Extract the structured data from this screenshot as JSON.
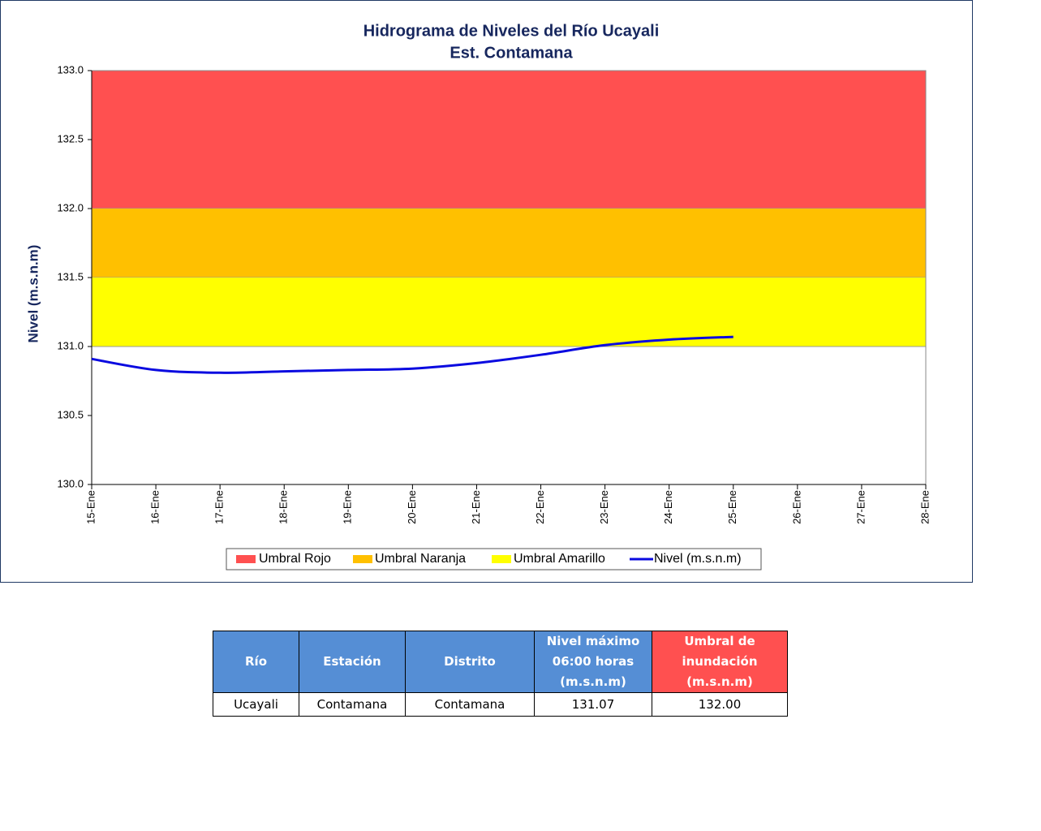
{
  "chart_data": {
    "type": "line",
    "title": "Hidrograma de Niveles del Río Ucayali",
    "subtitle": "Est. Contamana",
    "y_label": "Nivel (m.s.n.m)",
    "categories": [
      "15-Ene",
      "16-Ene",
      "17-Ene",
      "18-Ene",
      "19-Ene",
      "20-Ene",
      "21-Ene",
      "22-Ene",
      "23-Ene",
      "24-Ene",
      "25-Ene",
      "26-Ene",
      "27-Ene",
      "28-Ene"
    ],
    "bands": [
      {
        "name": "Umbral Rojo",
        "color": "#ff5050",
        "from": 132,
        "to": 133
      },
      {
        "name": "Umbral Naranja",
        "color": "#ffc000",
        "from": 131.5,
        "to": 132
      },
      {
        "name": "Umbral Amarillo",
        "color": "#ffff00",
        "from": 131,
        "to": 131.5
      }
    ],
    "series": [
      {
        "name": "Nivel (m.s.n.m)",
        "color": "#0a0ae0",
        "values": [
          130.91,
          130.83,
          130.81,
          130.82,
          130.83,
          130.84,
          130.88,
          130.94,
          131.01,
          131.05,
          131.07,
          null,
          null,
          null
        ]
      }
    ],
    "ylim": [
      130,
      133
    ],
    "yticks": [
      {
        "value": 130,
        "label": "130.0"
      },
      {
        "value": 130.5,
        "label": "130.5"
      },
      {
        "value": 131,
        "label": "131.0"
      },
      {
        "value": 131.5,
        "label": "131.5"
      },
      {
        "value": 132,
        "label": "132.0"
      },
      {
        "value": 132.5,
        "label": "132.5"
      },
      {
        "value": 133,
        "label": "133.0"
      }
    ],
    "legend": "bottom"
  },
  "table": {
    "header": [
      [
        "Río"
      ],
      [
        "Estación"
      ],
      [
        "Distrito"
      ],
      [
        "Nivel máximo",
        "06:00 horas",
        "(m.s.n.m)"
      ],
      [
        "Umbral de",
        "inundación",
        "(m.s.n.m)"
      ]
    ],
    "rows": [
      [
        "Ucayali",
        "Contamana",
        "Contamana",
        "131.07",
        "132.00"
      ]
    ]
  }
}
